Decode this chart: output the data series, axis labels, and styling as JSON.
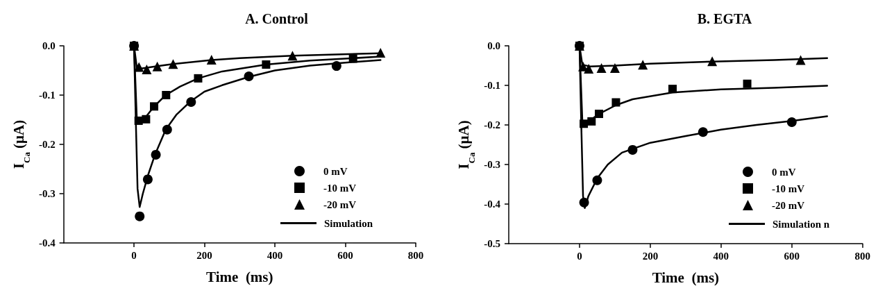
{
  "chart_data": [
    {
      "type": "scatter",
      "title": "A. Control",
      "xlabel": "Time  (ms)",
      "ylabel": "I$_{Ca}$ (μA)",
      "xlim": [
        -200,
        800
      ],
      "xticks": [
        0,
        200,
        400,
        600,
        800
      ],
      "ylim": [
        -0.4,
        0
      ],
      "yticks": [
        {
          "value": 0,
          "label": "0.0"
        },
        -0.1,
        -0.2,
        -0.3,
        -0.4
      ],
      "grid": false,
      "legend": "bottom right",
      "series": [
        {
          "name": "0 mV",
          "color": "#000000",
          "marker": "circle",
          "x": [
            0,
            16,
            39,
            62,
            94,
            162,
            326,
            575
          ],
          "values": [
            0,
            -0.346,
            -0.271,
            -0.221,
            -0.17,
            -0.114,
            -0.062,
            -0.041
          ]
        },
        {
          "name": "-10 mV",
          "color": "#000000",
          "marker": "square",
          "x": [
            0,
            13,
            34,
            57,
            91,
            182,
            375,
            622
          ],
          "values": [
            0,
            -0.152,
            -0.149,
            -0.123,
            -0.1,
            -0.066,
            -0.038,
            -0.026
          ]
        },
        {
          "name": "-20 mV",
          "color": "#000000",
          "marker": "triangle",
          "x": [
            0,
            14,
            36,
            66,
            111,
            220,
            450,
            700
          ],
          "values": [
            0,
            -0.043,
            -0.048,
            -0.042,
            -0.037,
            -0.028,
            -0.02,
            -0.014
          ]
        },
        {
          "name": "Simulation",
          "type": "line",
          "color": "#000000",
          "marker": "none",
          "x": [
            0,
            5,
            10,
            16,
            25,
            40,
            60,
            90,
            120,
            160,
            200,
            250,
            326,
            400,
            500,
            600,
            700
          ],
          "values": [
            0,
            -0.15,
            -0.29,
            -0.327,
            -0.3,
            -0.262,
            -0.22,
            -0.17,
            -0.14,
            -0.113,
            -0.093,
            -0.08,
            -0.063,
            -0.05,
            -0.04,
            -0.034,
            -0.029
          ]
        },
        {
          "type": "line",
          "color": "#000000",
          "marker": "none",
          "x": [
            0,
            8,
            15,
            35,
            57,
            90,
            130,
            182,
            250,
            375,
            500,
            700
          ],
          "values": [
            0,
            -0.15,
            -0.15,
            -0.143,
            -0.123,
            -0.1,
            -0.083,
            -0.066,
            -0.052,
            -0.038,
            -0.03,
            -0.022
          ]
        },
        {
          "type": "line",
          "color": "#000000",
          "marker": "none",
          "x": [
            0,
            8,
            20,
            60,
            110,
            220,
            300,
            450,
            700
          ],
          "values": [
            0,
            -0.045,
            -0.046,
            -0.042,
            -0.037,
            -0.029,
            -0.025,
            -0.02,
            -0.015
          ]
        }
      ]
    },
    {
      "type": "scatter",
      "title": "B. EGTA",
      "xlabel": "Time  (ms)",
      "ylabel": "I$_{Ca}$ (μA)",
      "xlim": [
        -200,
        800
      ],
      "xticks": [
        0,
        200,
        400,
        600,
        800
      ],
      "ylim": [
        -0.5,
        0
      ],
      "yticks": [
        {
          "value": 0,
          "label": "0.0"
        },
        -0.1,
        -0.2,
        -0.3,
        -0.4,
        -0.5
      ],
      "grid": false,
      "legend": "bottom right",
      "series": [
        {
          "name": "0 mV",
          "color": "#000000",
          "marker": "circle",
          "x": [
            0,
            13,
            50,
            150,
            349,
            600
          ],
          "values": [
            0,
            -0.396,
            -0.34,
            -0.263,
            -0.218,
            -0.193
          ]
        },
        {
          "name": "-10 mV",
          "color": "#000000",
          "marker": "square",
          "x": [
            0,
            12,
            34,
            55,
            103,
            263,
            474
          ],
          "values": [
            0,
            -0.197,
            -0.191,
            -0.172,
            -0.143,
            -0.109,
            -0.096
          ]
        },
        {
          "name": "-20 mV",
          "color": "#000000",
          "marker": "triangle",
          "x": [
            0,
            10,
            26,
            62,
            100,
            179,
            375,
            625
          ],
          "values": [
            0,
            -0.052,
            -0.058,
            -0.056,
            -0.056,
            -0.048,
            -0.039,
            -0.036
          ]
        },
        {
          "name": "Simulation n",
          "type": "line",
          "color": "#000000",
          "marker": "none",
          "x": [
            0,
            5,
            10,
            15,
            25,
            50,
            80,
            120,
            200,
            300,
            400,
            500,
            600,
            700
          ],
          "values": [
            0,
            -0.2,
            -0.38,
            -0.41,
            -0.38,
            -0.335,
            -0.3,
            -0.27,
            -0.245,
            -0.228,
            -0.212,
            -0.2,
            -0.19,
            -0.178
          ]
        },
        {
          "type": "line",
          "color": "#000000",
          "marker": "none",
          "x": [
            0,
            8,
            20,
            55,
            103,
            150,
            263,
            400,
            550,
            700
          ],
          "values": [
            0,
            -0.19,
            -0.195,
            -0.172,
            -0.15,
            -0.135,
            -0.118,
            -0.11,
            -0.106,
            -0.101
          ]
        },
        {
          "type": "line",
          "color": "#000000",
          "marker": "none",
          "x": [
            0,
            8,
            30,
            100,
            200,
            375,
            550,
            700
          ],
          "values": [
            0,
            -0.048,
            -0.052,
            -0.05,
            -0.045,
            -0.04,
            -0.036,
            -0.031
          ]
        }
      ]
    }
  ]
}
